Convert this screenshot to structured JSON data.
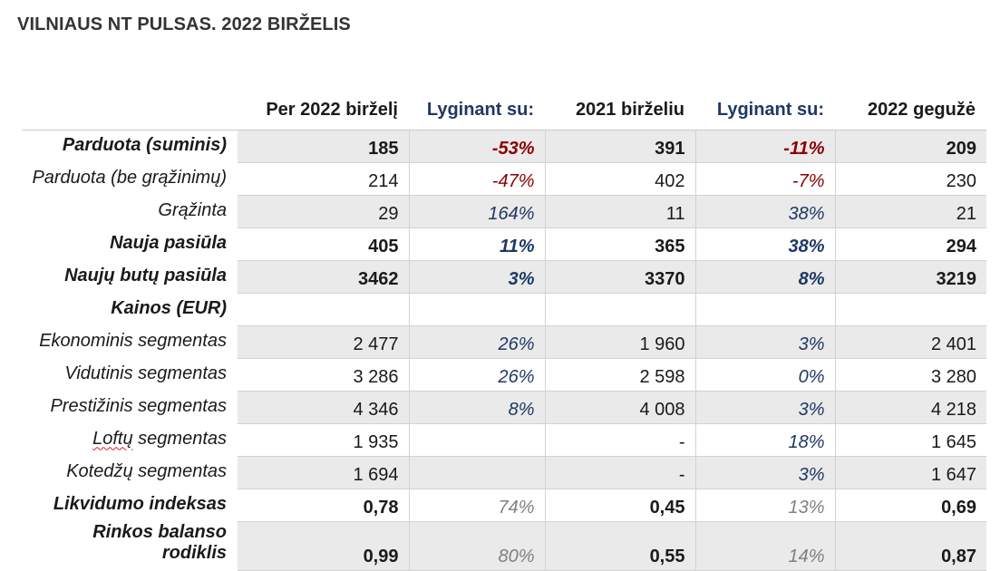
{
  "title": "VILNIAUS NT PULSAS. 2022 BIRŽELIS",
  "columns": [
    "Per 2022 birželį",
    "Lyginant su:",
    "2021 birželiu",
    "Lyginant su:",
    "2022 gegužė"
  ],
  "rows": [
    {
      "label": "Parduota (suminis)",
      "v1": "185",
      "c1": "-53%",
      "v2": "391",
      "c2": "-11%",
      "v3": "209"
    },
    {
      "label": "Parduota (be grąžinimų)",
      "v1": "214",
      "c1": "-47%",
      "v2": "402",
      "c2": "-7%",
      "v3": "230"
    },
    {
      "label": "Grąžinta",
      "v1": "29",
      "c1": "164%",
      "v2": "11",
      "c2": "38%",
      "v3": "21"
    },
    {
      "label": "Nauja pasiūla",
      "v1": "405",
      "c1": "11%",
      "v2": "365",
      "c2": "38%",
      "v3": "294"
    },
    {
      "label": "Naujų butų pasiūla",
      "v1": "3462",
      "c1": "3%",
      "v2": "3370",
      "c2": "8%",
      "v3": "3219"
    },
    {
      "label": "Kainos (EUR)",
      "v1": "",
      "c1": "",
      "v2": "",
      "c2": "",
      "v3": ""
    },
    {
      "label": "Ekonominis segmentas",
      "v1": "2 477",
      "c1": "26%",
      "v2": "1 960",
      "c2": "3%",
      "v3": "2 401"
    },
    {
      "label": "Vidutinis segmentas",
      "v1": "3 286",
      "c1": "26%",
      "v2": "2 598",
      "c2": "0%",
      "v3": "3 280"
    },
    {
      "label": "Prestižinis segmentas",
      "v1": "4 346",
      "c1": "8%",
      "v2": "4 008",
      "c2": "3%",
      "v3": "4 218"
    },
    {
      "label_a": "Loftų",
      "label_b": " segmentas",
      "v1": "1 935",
      "c1": "",
      "v2": "-",
      "c2": "18%",
      "v3": "1 645"
    },
    {
      "label": "Kotedžų segmentas",
      "v1": "1 694",
      "c1": "",
      "v2": "-",
      "c2": "3%",
      "v3": "1 647"
    },
    {
      "label": "Likvidumo indeksas",
      "v1": "0,78",
      "c1": "74%",
      "v2": "0,45",
      "c2": "13%",
      "v3": "0,69"
    },
    {
      "label": "Rinkos balanso rodiklis",
      "v1": "0,99",
      "c1": "80%",
      "v2": "0,55",
      "c2": "14%",
      "v3": "0,87"
    }
  ],
  "colors": {
    "negative": "#8b0000",
    "positive": "#1f3864",
    "muted": "#808080",
    "shade": "#eaeaea"
  }
}
